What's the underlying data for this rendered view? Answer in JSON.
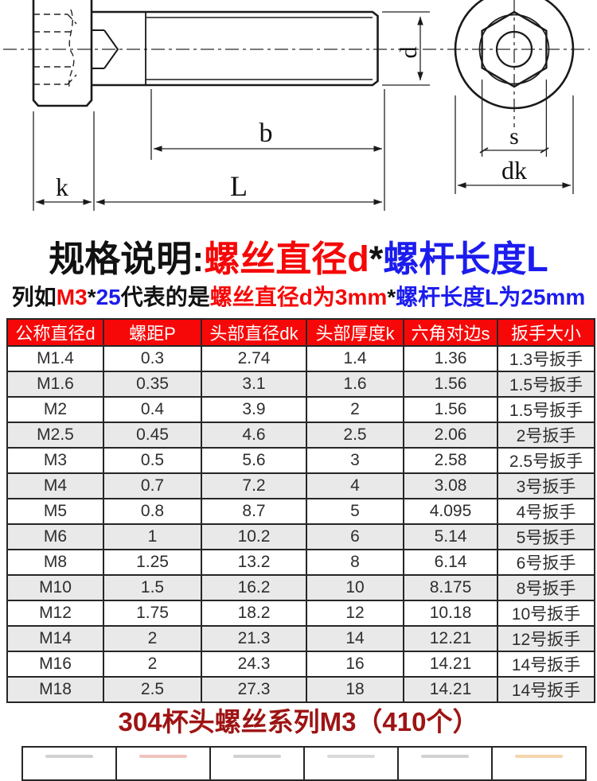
{
  "diagram": {
    "labels": {
      "d": "d",
      "b": "b",
      "k": "k",
      "L": "L",
      "s": "s",
      "dk": "dk"
    }
  },
  "spec_heading": {
    "parts": [
      {
        "text": "规格说明:",
        "color": "#111111"
      },
      {
        "text": "螺丝直径d",
        "color": "#f60707"
      },
      {
        "text": "*",
        "color": "#111111"
      },
      {
        "text": "螺杆长度L",
        "color": "#1c1cee"
      }
    ]
  },
  "spec_example": {
    "parts": [
      {
        "text": "列如",
        "color": "#111111"
      },
      {
        "text": "M3",
        "color": "#f60707"
      },
      {
        "text": "*",
        "color": "#111111"
      },
      {
        "text": "25",
        "color": "#1c1cee"
      },
      {
        "text": "代表的是",
        "color": "#111111"
      },
      {
        "text": "螺丝直径d为3mm",
        "color": "#f60707"
      },
      {
        "text": "*",
        "color": "#111111"
      },
      {
        "text": "螺杆长度L为25mm",
        "color": "#1c1cee"
      }
    ]
  },
  "spec_table": {
    "headers": [
      "公称直径d",
      "螺距P",
      "头部直径dk",
      "头部厚度k",
      "六角对边s",
      "扳手大小"
    ],
    "rows": [
      [
        "M1.4",
        "0.3",
        "2.74",
        "1.4",
        "1.36",
        "1.3号扳手"
      ],
      [
        "M1.6",
        "0.35",
        "3.1",
        "1.6",
        "1.56",
        "1.5号扳手"
      ],
      [
        "M2",
        "0.4",
        "3.9",
        "2",
        "1.56",
        "1.5号扳手"
      ],
      [
        "M2.5",
        "0.45",
        "4.6",
        "2.5",
        "2.06",
        "2号扳手"
      ],
      [
        "M3",
        "0.5",
        "5.6",
        "3",
        "2.58",
        "2.5号扳手"
      ],
      [
        "M4",
        "0.7",
        "7.2",
        "4",
        "3.08",
        "3号扳手"
      ],
      [
        "M5",
        "0.8",
        "8.7",
        "5",
        "4.095",
        "4号扳手"
      ],
      [
        "M6",
        "1",
        "10.2",
        "6",
        "5.14",
        "5号扳手"
      ],
      [
        "M8",
        "1.25",
        "13.2",
        "8",
        "6.14",
        "6号扳手"
      ],
      [
        "M10",
        "1.5",
        "16.2",
        "10",
        "8.175",
        "8号扳手"
      ],
      [
        "M12",
        "1.75",
        "18.2",
        "12",
        "10.18",
        "10号扳手"
      ],
      [
        "M14",
        "2",
        "21.3",
        "14",
        "12.21",
        "12号扳手"
      ],
      [
        "M16",
        "2",
        "24.3",
        "16",
        "14.21",
        "14号扳手"
      ],
      [
        "M18",
        "2.5",
        "27.3",
        "18",
        "14.21",
        "14号扳手"
      ]
    ]
  },
  "series_title": "304杯头螺丝系列M3（410个）",
  "bottom_table": {
    "columns": 6,
    "hint_colors": [
      "#9a9a9a",
      "#dd7a6a",
      "#9a9a9a",
      "#ababab",
      "#9a9a9a",
      "#e8a24a"
    ]
  },
  "colors": {
    "header_bg": "#f70808",
    "header_text": "#ffffff",
    "row_alt_bg": "#e9e9e9",
    "table_border": "#262626",
    "accent_red": "#f60707",
    "accent_blue": "#1c1cee",
    "series_title_red": "#9e1414",
    "drawing_line": "#1a1a1a"
  }
}
